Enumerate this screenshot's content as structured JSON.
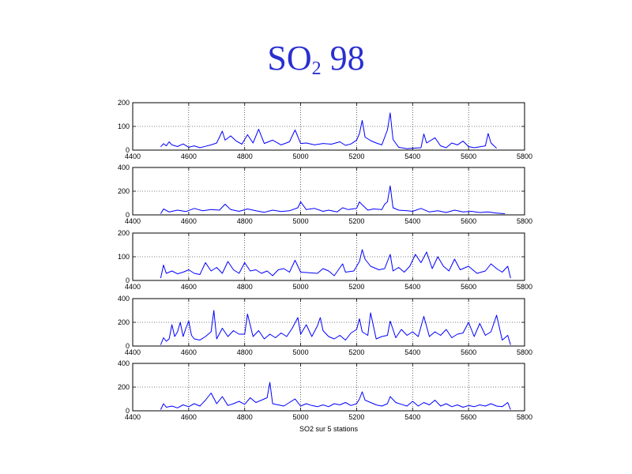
{
  "slide": {
    "title_main": "SO",
    "title_sub": "2",
    "title_rest": " 98"
  },
  "chart_data": {
    "type": "line",
    "xlabel": "SO2 sur 5 stations",
    "xlim": [
      4400,
      5800
    ],
    "x_ticks": [
      4400,
      4600,
      4800,
      5000,
      5200,
      5400,
      5600,
      5800
    ],
    "grid": true,
    "line_color": "#0000ff",
    "panels": [
      {
        "ylim": [
          0,
          200
        ],
        "y_ticks": [
          0,
          100,
          200
        ],
        "values": [
          [
            4500,
            14
          ],
          [
            4510,
            27
          ],
          [
            4520,
            18
          ],
          [
            4530,
            35
          ],
          [
            4540,
            22
          ],
          [
            4560,
            15
          ],
          [
            4580,
            26
          ],
          [
            4600,
            12
          ],
          [
            4620,
            18
          ],
          [
            4640,
            10
          ],
          [
            4660,
            16
          ],
          [
            4680,
            22
          ],
          [
            4700,
            30
          ],
          [
            4720,
            80
          ],
          [
            4730,
            42
          ],
          [
            4750,
            60
          ],
          [
            4770,
            38
          ],
          [
            4790,
            25
          ],
          [
            4810,
            65
          ],
          [
            4830,
            30
          ],
          [
            4850,
            88
          ],
          [
            4870,
            28
          ],
          [
            4900,
            42
          ],
          [
            4930,
            22
          ],
          [
            4960,
            35
          ],
          [
            4980,
            85
          ],
          [
            5000,
            28
          ],
          [
            5020,
            30
          ],
          [
            5050,
            22
          ],
          [
            5080,
            28
          ],
          [
            5110,
            25
          ],
          [
            5140,
            35
          ],
          [
            5160,
            20
          ],
          [
            5180,
            26
          ],
          [
            5200,
            42
          ],
          [
            5210,
            70
          ],
          [
            5220,
            125
          ],
          [
            5230,
            55
          ],
          [
            5250,
            40
          ],
          [
            5270,
            30
          ],
          [
            5290,
            22
          ],
          [
            5310,
            85
          ],
          [
            5320,
            157
          ],
          [
            5330,
            45
          ],
          [
            5350,
            12
          ],
          [
            5380,
            6
          ],
          [
            5400,
            8
          ],
          [
            5430,
            10
          ],
          [
            5440,
            68
          ],
          [
            5450,
            30
          ],
          [
            5480,
            52
          ],
          [
            5500,
            18
          ],
          [
            5520,
            10
          ],
          [
            5540,
            30
          ],
          [
            5560,
            22
          ],
          [
            5580,
            38
          ],
          [
            5600,
            15
          ],
          [
            5620,
            10
          ],
          [
            5660,
            18
          ],
          [
            5670,
            70
          ],
          [
            5680,
            30
          ],
          [
            5700,
            8
          ]
        ]
      },
      {
        "ylim": [
          0,
          400
        ],
        "y_ticks": [
          0,
          200,
          400
        ],
        "values": [
          [
            4500,
            10
          ],
          [
            4510,
            50
          ],
          [
            4530,
            25
          ],
          [
            4560,
            40
          ],
          [
            4590,
            28
          ],
          [
            4620,
            55
          ],
          [
            4650,
            35
          ],
          [
            4680,
            45
          ],
          [
            4710,
            40
          ],
          [
            4730,
            90
          ],
          [
            4750,
            45
          ],
          [
            4780,
            30
          ],
          [
            4810,
            50
          ],
          [
            4840,
            35
          ],
          [
            4870,
            22
          ],
          [
            4900,
            40
          ],
          [
            4930,
            28
          ],
          [
            4960,
            35
          ],
          [
            4990,
            60
          ],
          [
            5000,
            110
          ],
          [
            5020,
            45
          ],
          [
            5050,
            55
          ],
          [
            5080,
            30
          ],
          [
            5100,
            40
          ],
          [
            5130,
            25
          ],
          [
            5150,
            60
          ],
          [
            5170,
            45
          ],
          [
            5200,
            55
          ],
          [
            5210,
            110
          ],
          [
            5220,
            85
          ],
          [
            5240,
            40
          ],
          [
            5260,
            50
          ],
          [
            5290,
            45
          ],
          [
            5300,
            90
          ],
          [
            5310,
            110
          ],
          [
            5320,
            245
          ],
          [
            5330,
            60
          ],
          [
            5350,
            40
          ],
          [
            5380,
            35
          ],
          [
            5400,
            30
          ],
          [
            5430,
            55
          ],
          [
            5460,
            25
          ],
          [
            5490,
            35
          ],
          [
            5520,
            20
          ],
          [
            5550,
            40
          ],
          [
            5580,
            25
          ],
          [
            5610,
            30
          ],
          [
            5640,
            20
          ],
          [
            5670,
            25
          ],
          [
            5700,
            15
          ],
          [
            5730,
            10
          ]
        ]
      },
      {
        "ylim": [
          0,
          200
        ],
        "y_ticks": [
          0,
          100,
          200
        ],
        "values": [
          [
            4500,
            10
          ],
          [
            4510,
            65
          ],
          [
            4520,
            30
          ],
          [
            4540,
            40
          ],
          [
            4560,
            28
          ],
          [
            4580,
            35
          ],
          [
            4600,
            45
          ],
          [
            4620,
            30
          ],
          [
            4640,
            25
          ],
          [
            4660,
            75
          ],
          [
            4680,
            40
          ],
          [
            4700,
            55
          ],
          [
            4720,
            30
          ],
          [
            4740,
            80
          ],
          [
            4760,
            45
          ],
          [
            4780,
            30
          ],
          [
            4800,
            75
          ],
          [
            4820,
            40
          ],
          [
            4840,
            45
          ],
          [
            4860,
            30
          ],
          [
            4880,
            40
          ],
          [
            4900,
            20
          ],
          [
            4920,
            45
          ],
          [
            4940,
            50
          ],
          [
            4960,
            35
          ],
          [
            4980,
            85
          ],
          [
            5000,
            35
          ],
          [
            5060,
            30
          ],
          [
            5080,
            50
          ],
          [
            5100,
            40
          ],
          [
            5120,
            20
          ],
          [
            5150,
            70
          ],
          [
            5160,
            35
          ],
          [
            5190,
            40
          ],
          [
            5210,
            80
          ],
          [
            5220,
            130
          ],
          [
            5230,
            90
          ],
          [
            5250,
            60
          ],
          [
            5280,
            45
          ],
          [
            5300,
            50
          ],
          [
            5320,
            110
          ],
          [
            5330,
            40
          ],
          [
            5350,
            55
          ],
          [
            5370,
            35
          ],
          [
            5390,
            60
          ],
          [
            5410,
            110
          ],
          [
            5430,
            75
          ],
          [
            5450,
            120
          ],
          [
            5470,
            50
          ],
          [
            5490,
            100
          ],
          [
            5510,
            60
          ],
          [
            5530,
            40
          ],
          [
            5550,
            90
          ],
          [
            5570,
            45
          ],
          [
            5600,
            60
          ],
          [
            5630,
            30
          ],
          [
            5660,
            40
          ],
          [
            5680,
            70
          ],
          [
            5700,
            50
          ],
          [
            5720,
            35
          ],
          [
            5740,
            60
          ],
          [
            5750,
            10
          ]
        ]
      },
      {
        "ylim": [
          0,
          400
        ],
        "y_ticks": [
          0,
          200,
          400
        ],
        "values": [
          [
            4500,
            10
          ],
          [
            4510,
            70
          ],
          [
            4520,
            40
          ],
          [
            4530,
            60
          ],
          [
            4540,
            180
          ],
          [
            4550,
            80
          ],
          [
            4560,
            120
          ],
          [
            4570,
            200
          ],
          [
            4580,
            80
          ],
          [
            4590,
            150
          ],
          [
            4600,
            210
          ],
          [
            4610,
            90
          ],
          [
            4620,
            60
          ],
          [
            4640,
            50
          ],
          [
            4660,
            80
          ],
          [
            4680,
            120
          ],
          [
            4690,
            300
          ],
          [
            4700,
            60
          ],
          [
            4720,
            150
          ],
          [
            4740,
            80
          ],
          [
            4760,
            130
          ],
          [
            4780,
            100
          ],
          [
            4800,
            100
          ],
          [
            4810,
            270
          ],
          [
            4830,
            80
          ],
          [
            4850,
            130
          ],
          [
            4870,
            60
          ],
          [
            4890,
            100
          ],
          [
            4910,
            70
          ],
          [
            4930,
            110
          ],
          [
            4950,
            80
          ],
          [
            4970,
            150
          ],
          [
            4990,
            240
          ],
          [
            5000,
            100
          ],
          [
            5020,
            180
          ],
          [
            5040,
            80
          ],
          [
            5060,
            170
          ],
          [
            5070,
            240
          ],
          [
            5080,
            130
          ],
          [
            5100,
            80
          ],
          [
            5120,
            60
          ],
          [
            5140,
            90
          ],
          [
            5160,
            50
          ],
          [
            5180,
            110
          ],
          [
            5200,
            140
          ],
          [
            5210,
            230
          ],
          [
            5220,
            120
          ],
          [
            5240,
            90
          ],
          [
            5250,
            280
          ],
          [
            5270,
            60
          ],
          [
            5290,
            80
          ],
          [
            5310,
            90
          ],
          [
            5320,
            210
          ],
          [
            5340,
            70
          ],
          [
            5360,
            140
          ],
          [
            5380,
            90
          ],
          [
            5400,
            120
          ],
          [
            5420,
            80
          ],
          [
            5440,
            250
          ],
          [
            5460,
            80
          ],
          [
            5480,
            120
          ],
          [
            5500,
            90
          ],
          [
            5520,
            140
          ],
          [
            5540,
            70
          ],
          [
            5560,
            100
          ],
          [
            5580,
            110
          ],
          [
            5600,
            200
          ],
          [
            5620,
            80
          ],
          [
            5640,
            190
          ],
          [
            5660,
            90
          ],
          [
            5680,
            120
          ],
          [
            5700,
            260
          ],
          [
            5720,
            50
          ],
          [
            5740,
            90
          ],
          [
            5750,
            10
          ]
        ]
      },
      {
        "ylim": [
          0,
          400
        ],
        "y_ticks": [
          0,
          200,
          400
        ],
        "values": [
          [
            4500,
            10
          ],
          [
            4510,
            60
          ],
          [
            4520,
            30
          ],
          [
            4540,
            40
          ],
          [
            4560,
            25
          ],
          [
            4580,
            50
          ],
          [
            4600,
            35
          ],
          [
            4620,
            60
          ],
          [
            4640,
            40
          ],
          [
            4660,
            90
          ],
          [
            4680,
            150
          ],
          [
            4700,
            60
          ],
          [
            4720,
            120
          ],
          [
            4740,
            45
          ],
          [
            4760,
            60
          ],
          [
            4780,
            80
          ],
          [
            4800,
            55
          ],
          [
            4820,
            110
          ],
          [
            4840,
            70
          ],
          [
            4860,
            90
          ],
          [
            4880,
            110
          ],
          [
            4890,
            240
          ],
          [
            4900,
            60
          ],
          [
            4920,
            50
          ],
          [
            4940,
            40
          ],
          [
            4960,
            70
          ],
          [
            4980,
            100
          ],
          [
            5000,
            40
          ],
          [
            5020,
            60
          ],
          [
            5040,
            45
          ],
          [
            5060,
            35
          ],
          [
            5080,
            50
          ],
          [
            5100,
            35
          ],
          [
            5120,
            60
          ],
          [
            5140,
            50
          ],
          [
            5160,
            70
          ],
          [
            5180,
            45
          ],
          [
            5200,
            60
          ],
          [
            5210,
            100
          ],
          [
            5220,
            160
          ],
          [
            5230,
            90
          ],
          [
            5250,
            70
          ],
          [
            5270,
            50
          ],
          [
            5290,
            40
          ],
          [
            5310,
            60
          ],
          [
            5320,
            120
          ],
          [
            5340,
            70
          ],
          [
            5360,
            55
          ],
          [
            5380,
            40
          ],
          [
            5400,
            80
          ],
          [
            5420,
            40
          ],
          [
            5440,
            70
          ],
          [
            5460,
            50
          ],
          [
            5480,
            90
          ],
          [
            5500,
            40
          ],
          [
            5520,
            60
          ],
          [
            5540,
            35
          ],
          [
            5560,
            50
          ],
          [
            5580,
            30
          ],
          [
            5600,
            45
          ],
          [
            5620,
            35
          ],
          [
            5640,
            50
          ],
          [
            5660,
            40
          ],
          [
            5680,
            60
          ],
          [
            5700,
            40
          ],
          [
            5720,
            35
          ],
          [
            5740,
            70
          ],
          [
            5750,
            10
          ]
        ]
      }
    ]
  }
}
